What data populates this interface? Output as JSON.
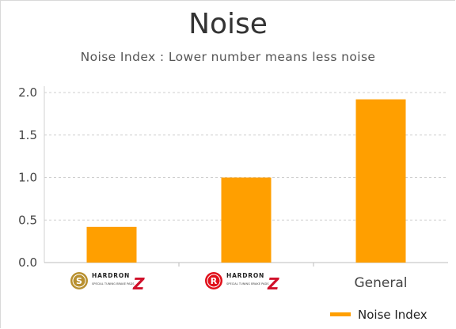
{
  "chart_data": {
    "type": "bar",
    "title": "Noise",
    "subtitle": "Noise Index : Lower number means less noise",
    "categories": [
      "HARDRON Z (S)",
      "HARDRON Z (R)",
      "General"
    ],
    "category_labels": [
      {
        "kind": "logo",
        "badge_letter": "S",
        "badge_color": "#b8902f",
        "brand": "HARDRON",
        "tagline": "SPECIAL TUNING BRAKE PADS",
        "mark": "Z"
      },
      {
        "kind": "logo",
        "badge_letter": "R",
        "badge_color": "#e0101a",
        "brand": "HARDRON",
        "tagline": "SPECIAL TUNING BRAKE PADS",
        "mark": "Z"
      },
      {
        "kind": "text",
        "text": "General"
      }
    ],
    "series": [
      {
        "name": "Noise Index",
        "values": [
          0.42,
          1.0,
          1.92
        ],
        "color": "#ff9f00"
      }
    ],
    "ylim": [
      0,
      2.0
    ],
    "yticks": [
      "0.0",
      "0.5",
      "1.0",
      "1.5",
      "2.0"
    ],
    "grid": "horizontal dashed",
    "legend_position": "bottom-right"
  }
}
